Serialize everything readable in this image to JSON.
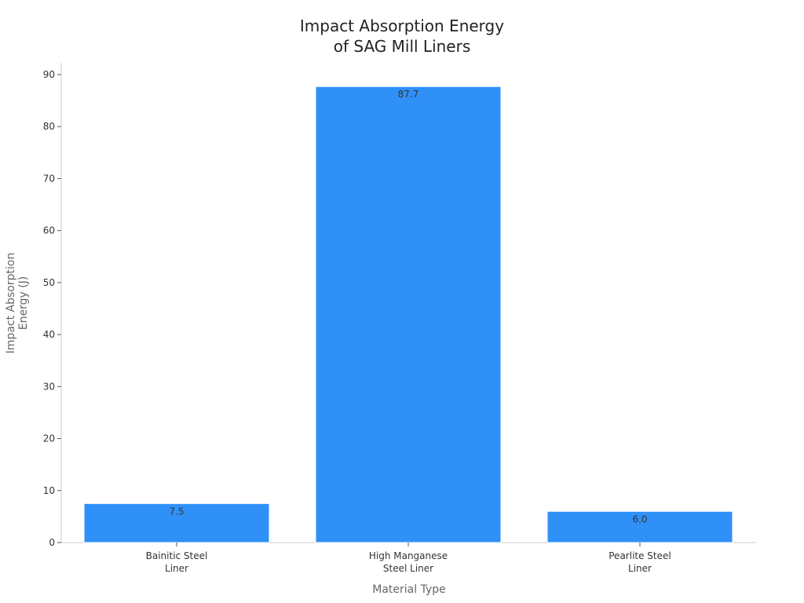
{
  "chart_data": {
    "type": "bar",
    "title_lines": [
      "Impact Absorption Energy",
      "of SAG Mill Liners"
    ],
    "xlabel": "Material Type",
    "ylabel_lines": [
      "Impact Absorption",
      "Energy (J)"
    ],
    "categories": [
      [
        "Bainitic Steel",
        "Liner"
      ],
      [
        "High Manganese",
        "Steel Liner"
      ],
      [
        "Pearlite Steel",
        "Liner"
      ]
    ],
    "values": [
      7.5,
      87.7,
      6.0
    ],
    "data_labels": [
      "7.5",
      "87.7",
      "6.0"
    ],
    "yticks": [
      0,
      10,
      20,
      30,
      40,
      50,
      60,
      70,
      80,
      90
    ],
    "ylim": [
      0,
      92
    ],
    "grid": false,
    "legend": "none",
    "bar_color": "#2f91f8"
  }
}
